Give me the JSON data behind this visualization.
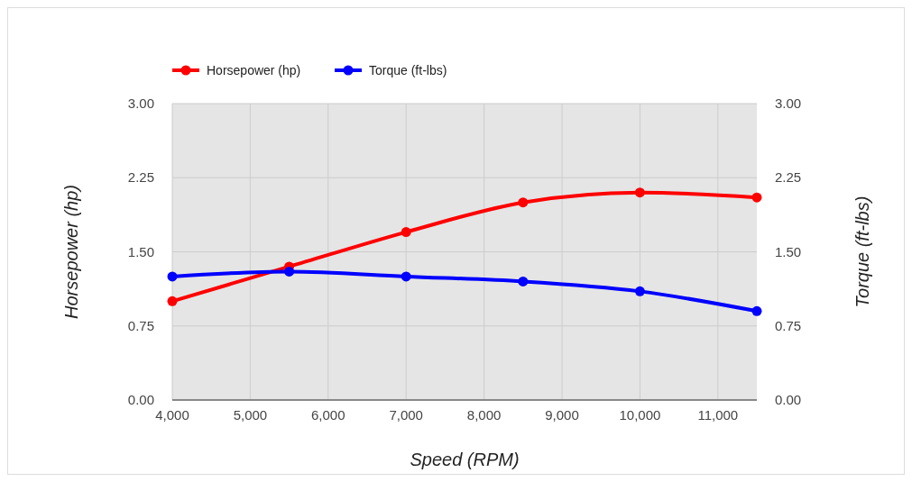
{
  "chart_data": {
    "type": "line",
    "xlabel": "Speed (RPM)",
    "ylabel": "Horsepower (hp)",
    "y2label": "Torque (ft-lbs)",
    "x": [
      4000,
      5500,
      7000,
      8500,
      10000,
      11500
    ],
    "xlim": [
      4000,
      11500
    ],
    "xticks": [
      {
        "value": 4000,
        "label": "4,000"
      },
      {
        "value": 5000,
        "label": "5,000"
      },
      {
        "value": 6000,
        "label": "6,000"
      },
      {
        "value": 7000,
        "label": "7,000"
      },
      {
        "value": 8000,
        "label": "8,000"
      },
      {
        "value": 9000,
        "label": "9,000"
      },
      {
        "value": 10000,
        "label": "10,000"
      },
      {
        "value": 11000,
        "label": "11,000"
      }
    ],
    "ylim": [
      0,
      3
    ],
    "yticks": [
      {
        "value": 0,
        "label": "0.00"
      },
      {
        "value": 0.75,
        "label": "0.75"
      },
      {
        "value": 1.5,
        "label": "1.50"
      },
      {
        "value": 2.25,
        "label": "2.25"
      },
      {
        "value": 3,
        "label": "3.00"
      }
    ],
    "y2lim": [
      0,
      3
    ],
    "y2ticks": [
      {
        "value": 0,
        "label": "0.00"
      },
      {
        "value": 0.75,
        "label": "0.75"
      },
      {
        "value": 1.5,
        "label": "1.50"
      },
      {
        "value": 2.25,
        "label": "2.25"
      },
      {
        "value": 3,
        "label": "3.00"
      }
    ],
    "series": [
      {
        "name": "Horsepower (hp)",
        "color": "#ff0000",
        "values": [
          1.0,
          1.35,
          1.7,
          2.0,
          2.1,
          2.05
        ]
      },
      {
        "name": "Torque (ft-lbs)",
        "color": "#0000ff",
        "axis": "y2",
        "values": [
          1.25,
          1.3,
          1.25,
          1.2,
          1.1,
          0.9
        ]
      }
    ],
    "grid": true,
    "legend": "top left",
    "marker": "circle",
    "line_style": "solid"
  }
}
